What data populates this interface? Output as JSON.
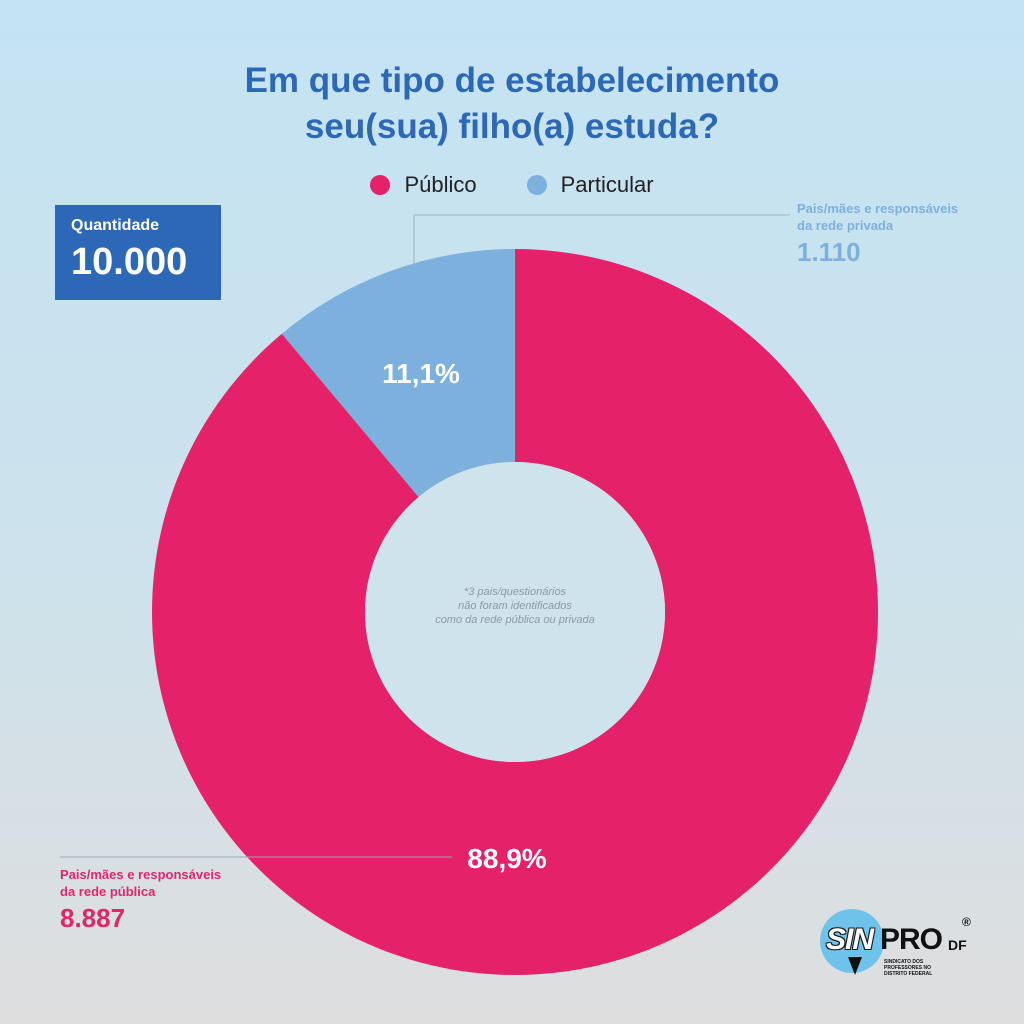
{
  "chart_data": {
    "type": "pie",
    "title_lines": [
      "Em que tipo de estabelecimento",
      "seu(sua) filho(a) estuda?"
    ],
    "categories": [
      "Público",
      "Particular"
    ],
    "values": [
      88.9,
      11.1
    ],
    "value_labels": [
      "88,9%",
      "11,1%"
    ],
    "counts": [
      8887,
      1110
    ],
    "colors": [
      "#e5216a",
      "#7eb0de"
    ],
    "donut": true,
    "legend_position": "top-center"
  },
  "legend": [
    {
      "label": "Público",
      "color": "#e5216a"
    },
    {
      "label": "Particular",
      "color": "#7eb0de"
    }
  ],
  "quantity": {
    "label": "Quantidade",
    "value": "10.000"
  },
  "annotations": {
    "private": {
      "line1": "Pais/mães e responsáveis",
      "line2": "da rede privada",
      "count": "1.110"
    },
    "public": {
      "line1": "Pais/mães e responsáveis",
      "line2": "da rede pública",
      "count": "8.887"
    }
  },
  "center_note": [
    "*3 pais/questionários",
    "não foram identificados",
    "como da rede pública ou privada"
  ],
  "logo": {
    "part1": "SIN",
    "part2": "PRO",
    "suffix": "DF",
    "reg": "®",
    "sub": "SINDICATO DOS PROFESSORES NO DISTRITO FEDERAL"
  }
}
